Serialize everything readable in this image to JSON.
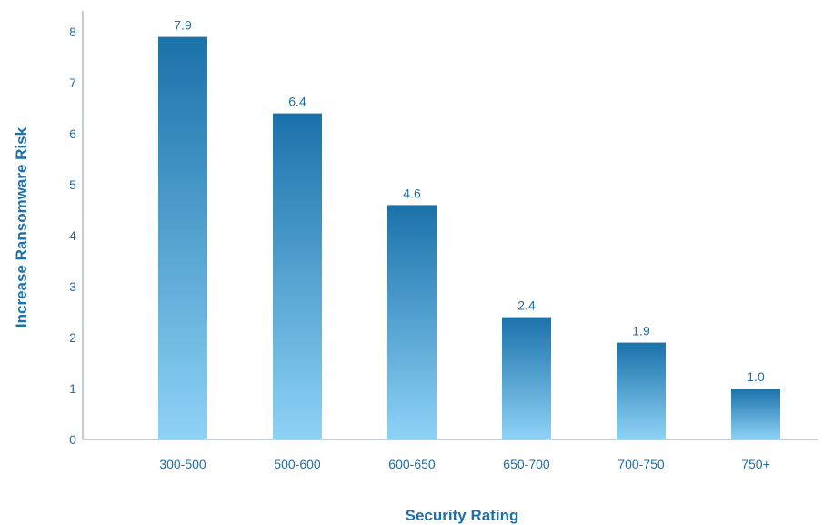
{
  "chart_data": {
    "type": "bar",
    "categories": [
      "300-500",
      "500-600",
      "600-650",
      "650-700",
      "700-750",
      "750+"
    ],
    "values": [
      7.9,
      6.4,
      4.6,
      2.4,
      1.9,
      1.0
    ],
    "value_labels": [
      "7.9",
      "6.4",
      "4.6",
      "2.4",
      "1.9",
      "1.0"
    ],
    "xlabel": "Security Rating",
    "ylabel": "Increase Ransomware Risk",
    "ylim": [
      0,
      8
    ],
    "yticks": [
      0,
      1,
      2,
      3,
      4,
      5,
      6,
      7,
      8
    ],
    "grid": false,
    "colors": {
      "bar_top": "#1a72aa",
      "bar_bottom": "#8ed3f6",
      "text": "#1f6fa8",
      "axis": "#8a9aa8"
    }
  }
}
